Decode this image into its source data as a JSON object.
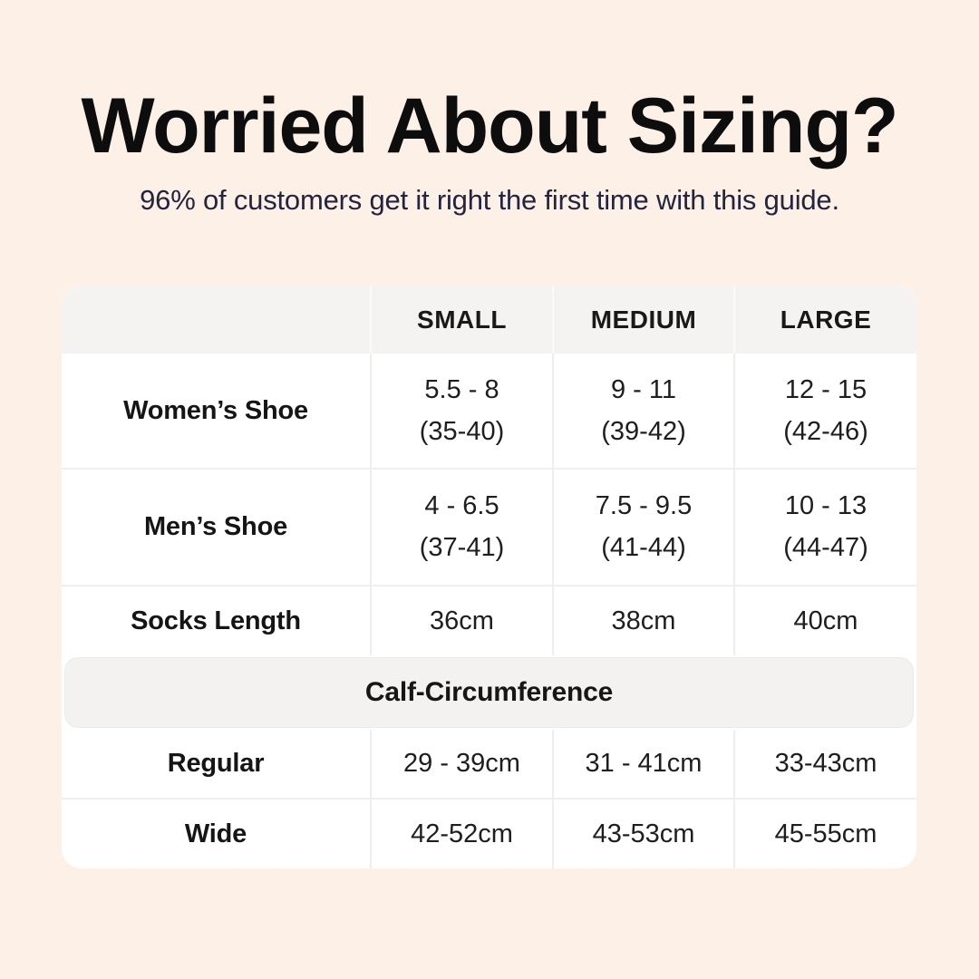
{
  "header": {
    "title": "Worried About Sizing?",
    "subtitle": "96% of customers get it right the first time with this guide."
  },
  "chart_data": {
    "type": "table",
    "title": "Worried About Sizing?",
    "subtitle": "96% of customers get it right the first time with this guide.",
    "column_headers": [
      "SMALL",
      "MEDIUM",
      "LARGE"
    ],
    "rows": [
      {
        "label": "Women’s Shoe",
        "small": [
          "5.5 - 8",
          "(35-40)"
        ],
        "medium": [
          "9 - 11",
          "(39-42)"
        ],
        "large": [
          "12 - 15",
          "(42-46)"
        ]
      },
      {
        "label": "Men’s Shoe",
        "small": [
          "4 - 6.5",
          "(37-41)"
        ],
        "medium": [
          "7.5 - 9.5",
          "(41-44)"
        ],
        "large": [
          "10 - 13",
          "(44-47)"
        ]
      },
      {
        "label": "Socks Length",
        "small": [
          "36cm"
        ],
        "medium": [
          "38cm"
        ],
        "large": [
          "40cm"
        ]
      }
    ],
    "section_header": "Calf-Circumference",
    "section_rows": [
      {
        "label": "Regular",
        "small": [
          "29 - 39cm"
        ],
        "medium": [
          "31 - 41cm"
        ],
        "large": [
          "33-43cm"
        ]
      },
      {
        "label": "Wide",
        "small": [
          "42-52cm"
        ],
        "medium": [
          "43-53cm"
        ],
        "large": [
          "45-55cm"
        ]
      }
    ],
    "layout": {
      "grid": "off",
      "legend": "none"
    }
  },
  "colors": {
    "background": "#fdf0e7",
    "card": "#ffffff",
    "table_header_bg": "#f4f3f1",
    "section_band_bg": "#f3f2f0",
    "title_text": "#0d0d0d",
    "subtitle_text": "#24243f",
    "value_text": "#1e1e1e"
  }
}
